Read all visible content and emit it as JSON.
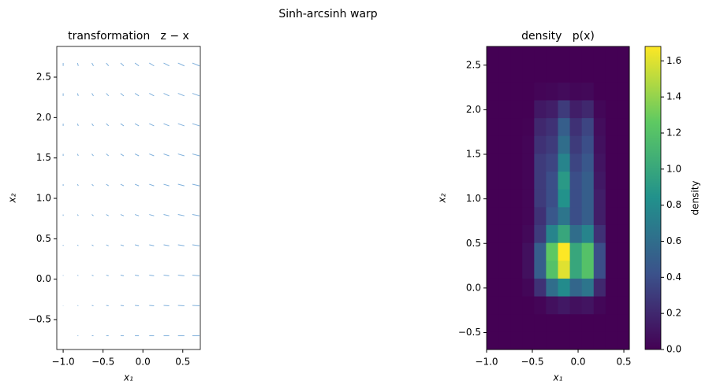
{
  "title": "Sinh-arcsinh warp",
  "chart_data": [
    {
      "type": "quiver",
      "title": "transformation   z − x",
      "xlabel": "x₁",
      "ylabel": "x₂",
      "color": "#7fb0dc",
      "xlim": [
        -1.08,
        0.72
      ],
      "ylim": [
        -0.87,
        2.88
      ],
      "xticks": [
        {
          "value": -1.0,
          "label": "−1.0"
        },
        {
          "value": -0.5,
          "label": "−0.5"
        },
        {
          "value": 0,
          "label": "0.0"
        },
        0.5
      ],
      "yticks": [
        {
          "value": -0.5,
          "label": "−0.5"
        },
        {
          "value": 0,
          "label": "0.0"
        },
        0.5,
        {
          "value": 1,
          "label": "1.0"
        },
        1.5,
        {
          "value": 2,
          "label": "2.0"
        },
        2.5
      ],
      "x": [
        -1.0,
        -0.82,
        -0.64,
        -0.46,
        -0.28,
        -0.1,
        0.08,
        0.26,
        0.44,
        0.62
      ],
      "y": [
        -0.7,
        -0.325,
        0.05,
        0.425,
        0.8,
        1.175,
        1.55,
        1.925,
        2.3,
        2.675
      ],
      "u": [
        [
          0,
          0.01,
          0.02,
          0.03,
          0.04,
          0.05,
          0.06,
          0.07,
          0.08,
          0.09
        ],
        [
          0,
          0.01,
          0.02,
          0.03,
          0.04,
          0.05,
          0.06,
          0.07,
          0.08,
          0.09
        ],
        [
          0,
          0.01,
          0.02,
          0.03,
          0.04,
          0.05,
          0.06,
          0.07,
          0.08,
          0.09
        ],
        [
          0,
          0.01,
          0.02,
          0.03,
          0.04,
          0.05,
          0.06,
          0.07,
          0.08,
          0.09
        ],
        [
          0,
          0.01,
          0.02,
          0.03,
          0.04,
          0.05,
          0.06,
          0.07,
          0.08,
          0.09
        ],
        [
          0,
          0.01,
          0.02,
          0.03,
          0.04,
          0.05,
          0.06,
          0.07,
          0.08,
          0.09
        ],
        [
          0,
          0.01,
          0.02,
          0.03,
          0.04,
          0.05,
          0.06,
          0.07,
          0.08,
          0.09
        ],
        [
          0,
          0.01,
          0.02,
          0.03,
          0.04,
          0.05,
          0.06,
          0.07,
          0.08,
          0.09
        ],
        [
          0,
          0.01,
          0.02,
          0.03,
          0.04,
          0.05,
          0.06,
          0.07,
          0.08,
          0.09
        ],
        [
          0,
          0.01,
          0.02,
          0.03,
          0.04,
          0.05,
          0.06,
          0.07,
          0.08,
          0.09
        ]
      ],
      "v": [
        [
          0,
          0,
          0,
          0,
          0,
          0,
          0,
          0,
          0,
          0
        ],
        [
          -0.004,
          -0.004,
          -0.004,
          -0.004,
          -0.004,
          -0.004,
          -0.004,
          -0.004,
          -0.004,
          -0.004
        ],
        [
          -0.008,
          -0.008,
          -0.008,
          -0.008,
          -0.008,
          -0.008,
          -0.008,
          -0.008,
          -0.008,
          -0.008
        ],
        [
          -0.012,
          -0.012,
          -0.012,
          -0.012,
          -0.012,
          -0.012,
          -0.012,
          -0.012,
          -0.012,
          -0.012
        ],
        [
          -0.016,
          -0.016,
          -0.016,
          -0.016,
          -0.016,
          -0.016,
          -0.016,
          -0.016,
          -0.016,
          -0.016
        ],
        [
          -0.02,
          -0.02,
          -0.02,
          -0.02,
          -0.02,
          -0.02,
          -0.02,
          -0.02,
          -0.02,
          -0.02
        ],
        [
          -0.024,
          -0.024,
          -0.024,
          -0.024,
          -0.024,
          -0.024,
          -0.024,
          -0.024,
          -0.024,
          -0.024
        ],
        [
          -0.028,
          -0.028,
          -0.028,
          -0.028,
          -0.028,
          -0.028,
          -0.028,
          -0.028,
          -0.028,
          -0.028
        ],
        [
          -0.032,
          -0.032,
          -0.032,
          -0.032,
          -0.032,
          -0.032,
          -0.032,
          -0.032,
          -0.032,
          -0.032
        ],
        [
          -0.036,
          -0.036,
          -0.036,
          -0.036,
          -0.036,
          -0.036,
          -0.036,
          -0.036,
          -0.036,
          -0.036
        ]
      ]
    },
    {
      "type": "heatmap",
      "title": "density   p(x)",
      "xlabel": "x₁",
      "ylabel": "x₂",
      "colorbar_label": "density",
      "colormap": [
        "#440154",
        "#3b528b",
        "#21918c",
        "#5ec962",
        "#fde725"
      ],
      "clim": [
        0,
        1.68
      ],
      "xlim": [
        -1.0,
        0.56
      ],
      "ylim": [
        -0.69,
        2.71
      ],
      "xticks": [
        {
          "value": -1.0,
          "label": "−1.0"
        },
        {
          "value": -0.5,
          "label": "−0.5"
        },
        {
          "value": 0,
          "label": "0.0"
        },
        0.5
      ],
      "yticks": [
        {
          "value": -0.5,
          "label": "−0.5"
        },
        {
          "value": 0,
          "label": "0.0"
        },
        0.5,
        {
          "value": 1,
          "label": "1.0"
        },
        1.5,
        {
          "value": 2,
          "label": "2.0"
        },
        2.5
      ],
      "cticks": [
        {
          "value": 0,
          "label": "0.0"
        },
        0.2,
        0.4,
        0.6,
        0.8,
        {
          "value": 1,
          "label": "1.0"
        },
        1.2,
        1.4,
        1.6
      ],
      "x_edges": [
        -1.0,
        -0.87,
        -0.74,
        -0.61,
        -0.48,
        -0.35,
        -0.22,
        -0.09,
        0.04,
        0.17,
        0.3,
        0.43,
        0.56
      ],
      "y_edges": [
        -0.69,
        -0.49,
        -0.29,
        -0.09,
        0.11,
        0.31,
        0.51,
        0.71,
        0.91,
        1.11,
        1.31,
        1.51,
        1.71,
        1.91,
        2.11,
        2.31,
        2.51,
        2.71
      ],
      "z": [
        [
          0,
          0,
          0,
          0,
          0,
          0,
          0,
          0,
          0,
          0,
          0,
          0
        ],
        [
          0,
          0,
          0,
          0,
          0,
          0,
          0,
          0,
          0,
          0,
          0,
          0
        ],
        [
          0,
          0,
          0,
          0,
          0.02,
          0.08,
          0.12,
          0.08,
          0.1,
          0.03,
          0,
          0
        ],
        [
          0,
          0,
          0,
          0.03,
          0.25,
          0.6,
          0.8,
          0.55,
          0.65,
          0.2,
          0,
          0
        ],
        [
          0,
          0,
          0,
          0.08,
          0.5,
          1.2,
          1.6,
          1.0,
          1.2,
          0.4,
          0,
          0
        ],
        [
          0,
          0,
          0,
          0.08,
          0.5,
          1.25,
          1.68,
          1.0,
          1.2,
          0.4,
          0,
          0
        ],
        [
          0,
          0,
          0,
          0.04,
          0.3,
          0.75,
          1.0,
          0.6,
          0.75,
          0.25,
          0,
          0
        ],
        [
          0,
          0,
          0,
          0.02,
          0.25,
          0.45,
          0.65,
          0.4,
          0.5,
          0.15,
          0,
          0
        ],
        [
          0,
          0,
          0,
          0.02,
          0.3,
          0.4,
          0.85,
          0.4,
          0.5,
          0.15,
          0,
          0
        ],
        [
          0,
          0,
          0,
          0.02,
          0.3,
          0.4,
          0.9,
          0.4,
          0.5,
          0.12,
          0,
          0
        ],
        [
          0,
          0,
          0,
          0.02,
          0.3,
          0.35,
          0.75,
          0.35,
          0.45,
          0.1,
          0,
          0
        ],
        [
          0,
          0,
          0,
          0.02,
          0.25,
          0.3,
          0.6,
          0.3,
          0.4,
          0.08,
          0,
          0
        ],
        [
          0,
          0,
          0,
          0.01,
          0.2,
          0.25,
          0.5,
          0.25,
          0.35,
          0.06,
          0,
          0
        ],
        [
          0,
          0,
          0,
          0,
          0.12,
          0.15,
          0.3,
          0.15,
          0.2,
          0.03,
          0,
          0
        ],
        [
          0,
          0,
          0,
          0,
          0.02,
          0.03,
          0.05,
          0.03,
          0.04,
          0,
          0,
          0
        ],
        [
          0,
          0,
          0,
          0,
          0,
          0,
          0,
          0,
          0,
          0,
          0,
          0
        ],
        [
          0,
          0,
          0,
          0,
          0,
          0,
          0,
          0,
          0,
          0,
          0,
          0
        ]
      ]
    }
  ]
}
